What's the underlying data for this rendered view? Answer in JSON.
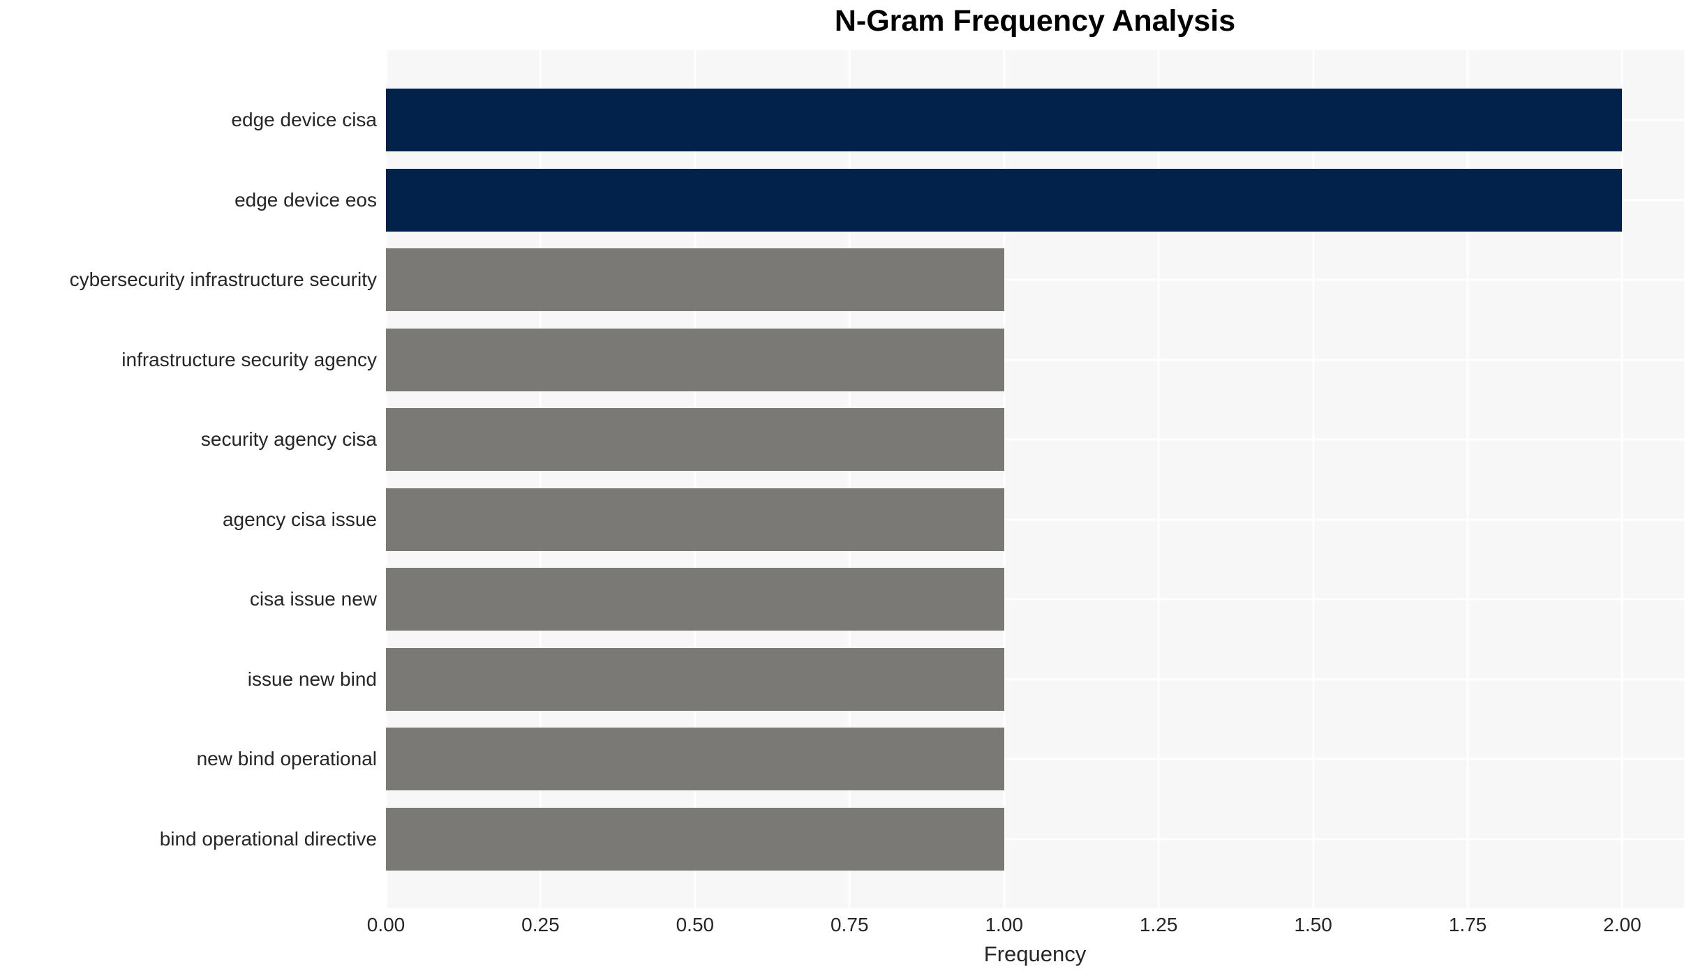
{
  "chart_data": {
    "type": "bar",
    "orientation": "horizontal",
    "title": "N-Gram Frequency Analysis",
    "xlabel": "Frequency",
    "ylabel": "",
    "categories": [
      "edge device cisa",
      "edge device eos",
      "cybersecurity infrastructure security",
      "infrastructure security agency",
      "security agency cisa",
      "agency cisa issue",
      "cisa issue new",
      "issue new bind",
      "new bind operational",
      "bind operational directive"
    ],
    "values": [
      2,
      2,
      1,
      1,
      1,
      1,
      1,
      1,
      1,
      1
    ],
    "bar_colors": [
      "#02214b",
      "#02214b",
      "#7a7975",
      "#7a7975",
      "#7a7975",
      "#7a7975",
      "#7a7975",
      "#7a7975",
      "#7a7975",
      "#7a7975"
    ],
    "xlim": [
      0,
      2.1
    ],
    "xticks": [
      0,
      0.25,
      0.5,
      0.75,
      1.0,
      1.25,
      1.5,
      1.75,
      2.0
    ],
    "xtick_labels": [
      "0.00",
      "0.25",
      "0.50",
      "0.75",
      "1.00",
      "1.25",
      "1.50",
      "1.75",
      "2.00"
    ],
    "grid": true,
    "legend": false,
    "colors": {
      "highlight_bar": "#02214b",
      "default_bar": "#7a7975",
      "plot_background": "#f7f7f7",
      "grid_line": "#ffffff",
      "tick_text": "#262626",
      "title_text": "#000000"
    }
  }
}
